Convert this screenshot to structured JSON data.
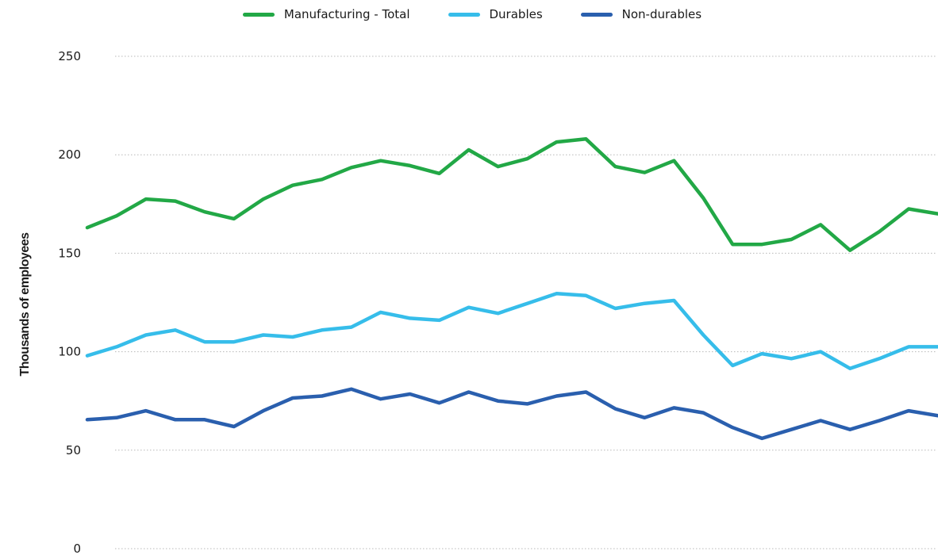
{
  "chart_data": {
    "type": "line",
    "title": "",
    "xlabel": "",
    "ylabel": "Thousands of employees",
    "ylim": [
      0,
      250
    ],
    "yticks": [
      "0",
      "50",
      "100",
      "150",
      "200",
      "250"
    ],
    "grid": "horizontal dotted",
    "legend_position": "top-center",
    "series": [
      {
        "name": "Manufacturing - Total",
        "color": "#22a846",
        "values": [
          163,
          169,
          177.5,
          176.5,
          171,
          167.5,
          177.5,
          184.5,
          187.5,
          193.5,
          197,
          194.5,
          190.5,
          202.5,
          194,
          198,
          206.5,
          208,
          194,
          191,
          197,
          178,
          154.5,
          154.5,
          157,
          164.5,
          151.5,
          161,
          172.5,
          170
        ]
      },
      {
        "name": "Durables",
        "color": "#36bdea",
        "values": [
          98,
          102.5,
          108.5,
          111,
          105,
          105,
          108.5,
          107.5,
          111,
          112.5,
          120,
          117,
          116,
          122.5,
          119.5,
          124.5,
          129.5,
          128.5,
          122,
          124.5,
          126,
          108.5,
          93,
          99,
          96.5,
          100,
          91.5,
          96.5,
          102.5,
          102.5
        ]
      },
      {
        "name": "Non-durables",
        "color": "#2a5fae",
        "values": [
          65.5,
          66.5,
          70,
          65.5,
          65.5,
          62,
          70,
          76.5,
          77.5,
          81,
          76,
          78.5,
          74,
          79.5,
          75,
          73.5,
          77.5,
          79.5,
          71,
          66.5,
          71.5,
          69,
          61.5,
          56,
          60.5,
          65,
          60.5,
          65,
          70,
          67.5
        ]
      }
    ]
  }
}
